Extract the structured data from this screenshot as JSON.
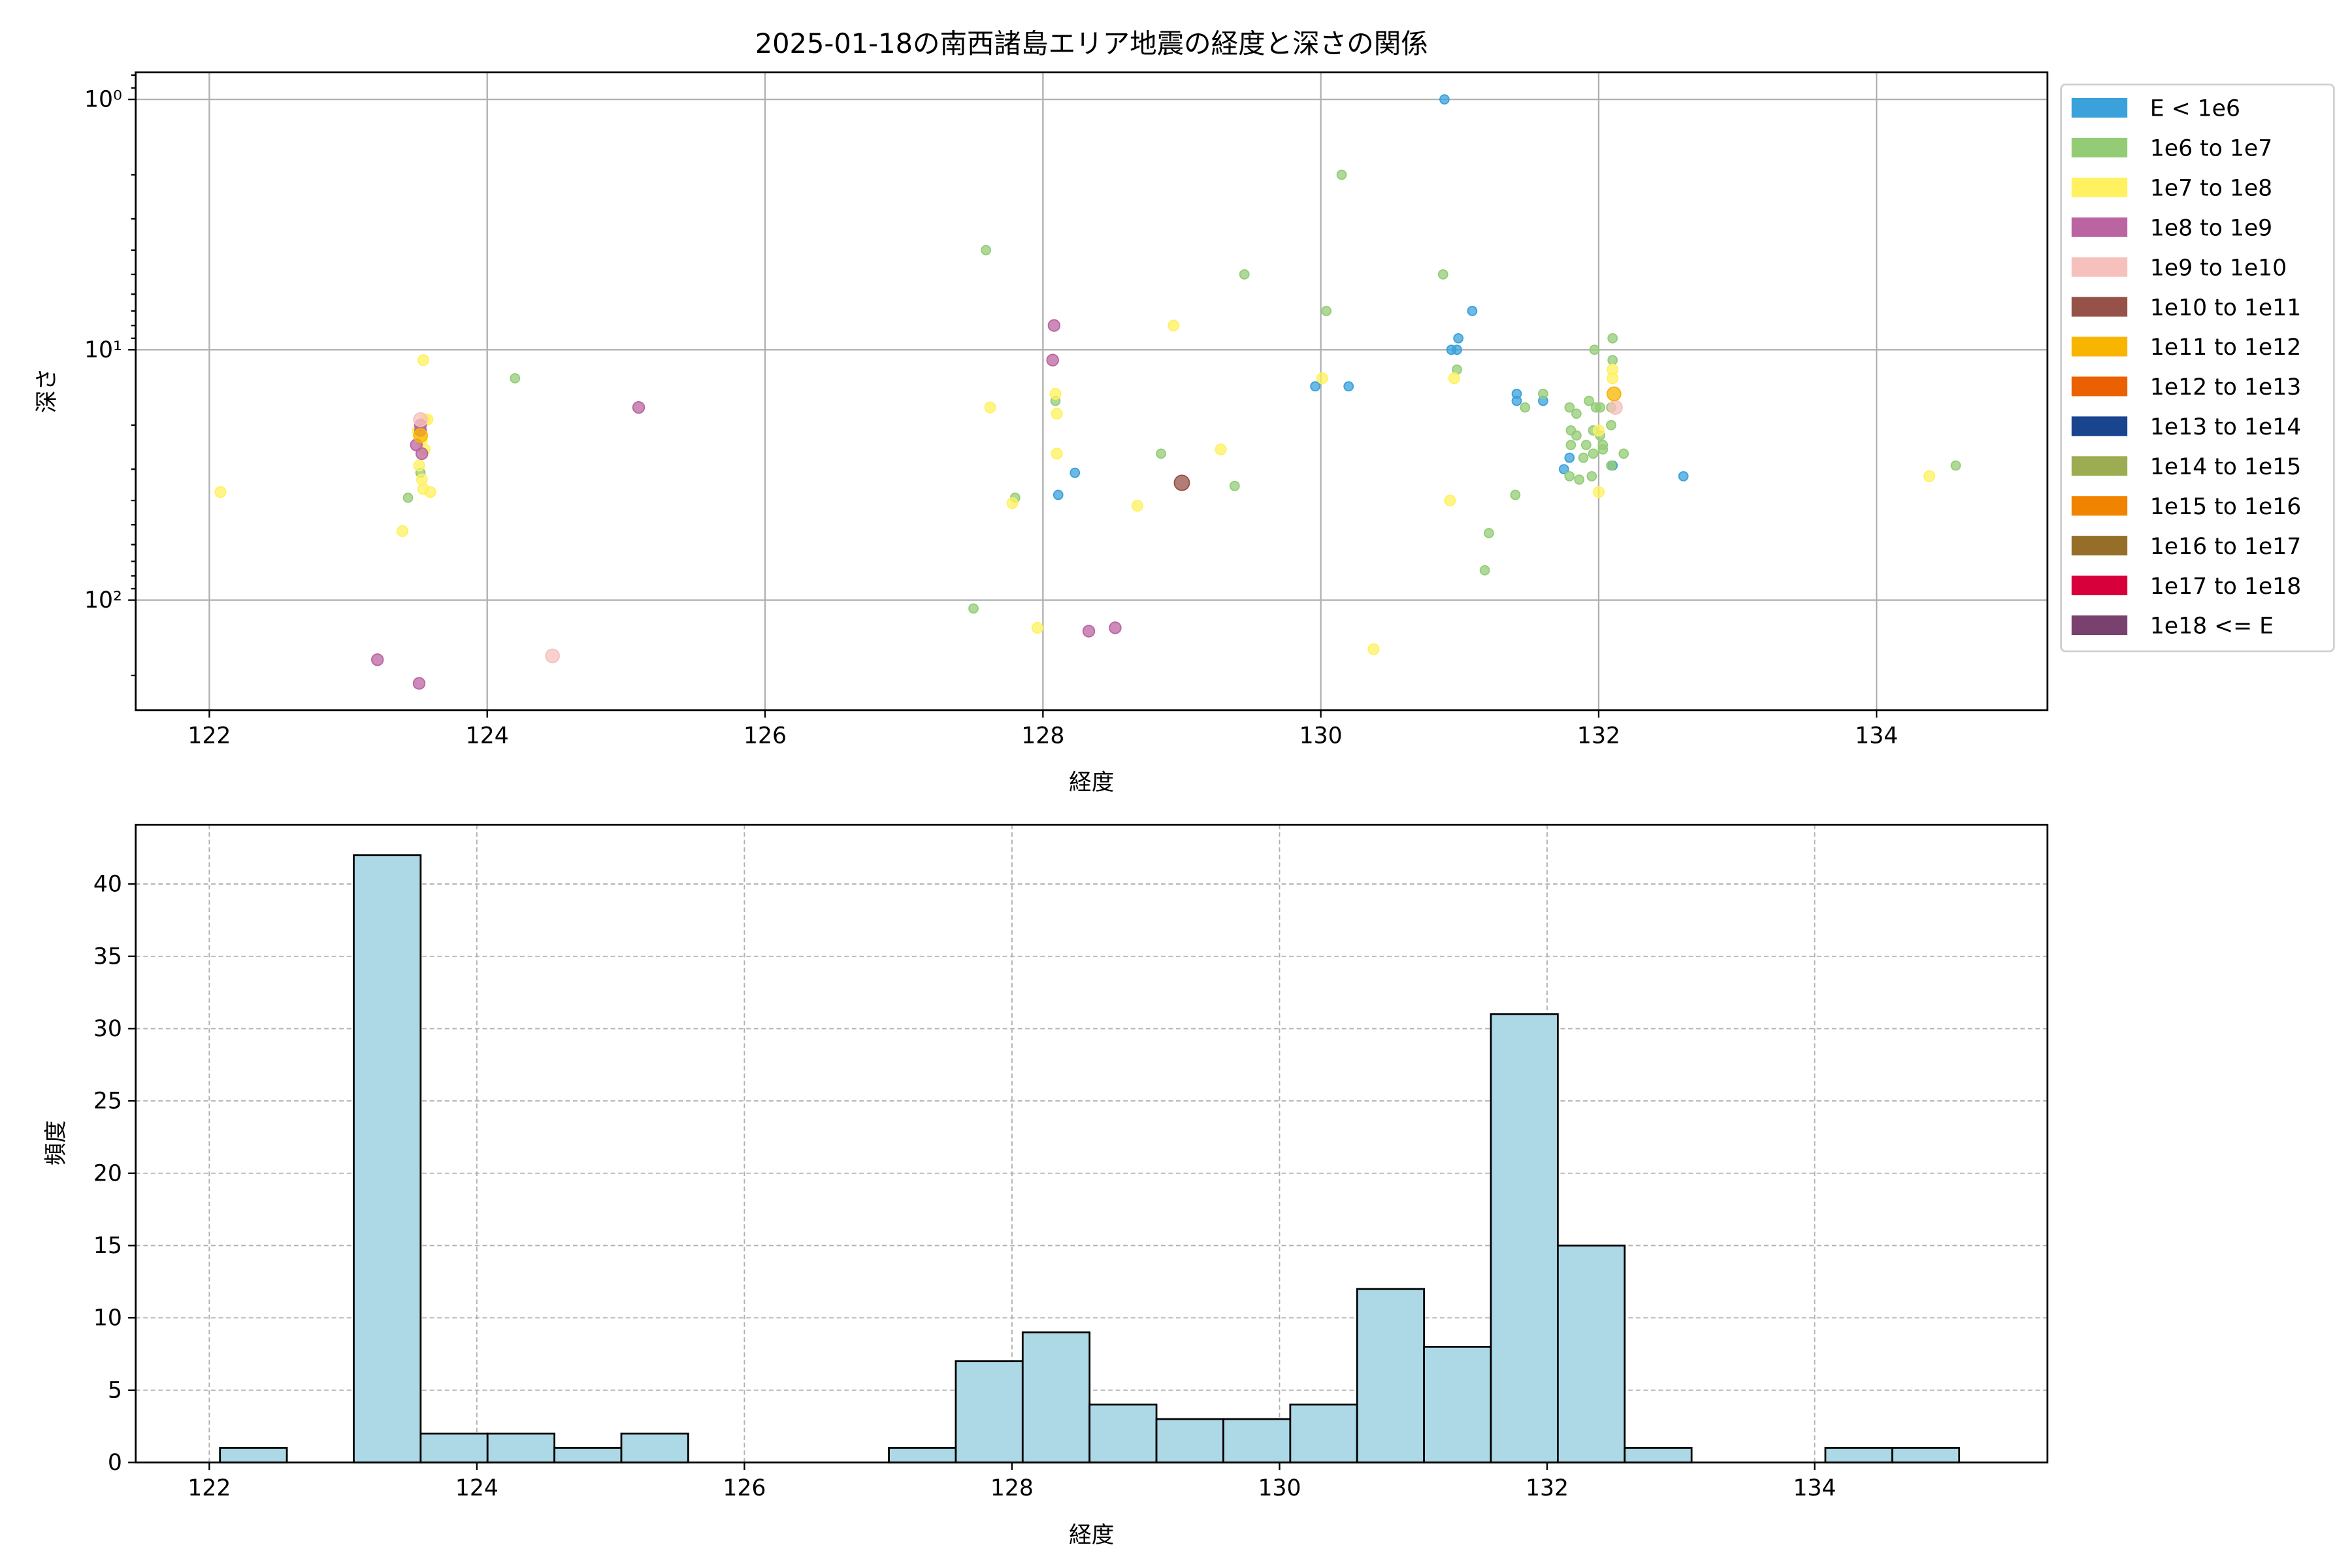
{
  "chart_data": [
    {
      "type": "scatter",
      "title": "2025-01-18の南西諸島エリア地震の経度と深さの関係",
      "xlabel": "経度",
      "ylabel": "深さ",
      "xlim": [
        121.47,
        135.23
      ],
      "ylim": [
        275,
        0.78
      ],
      "y_scale": "log",
      "y_inverted": true,
      "x_ticks": [
        122,
        124,
        126,
        128,
        130,
        132,
        134
      ],
      "x_tick_labels": [
        "122",
        "124",
        "126",
        "128",
        "130",
        "132",
        "134"
      ],
      "y_ticks": [
        1,
        10,
        100
      ],
      "y_tick_labels": [
        "10⁰",
        "10¹",
        "10²"
      ],
      "grid": true,
      "legend_placement": "outside-right",
      "series": [
        {
          "name": "E < 1e6",
          "color": "#3aa1db",
          "points": [
            [
              130.89,
              1
            ],
            [
              131.09,
              7
            ],
            [
              130.99,
              9
            ],
            [
              130.94,
              10
            ],
            [
              130.98,
              10
            ],
            [
              129.96,
              14
            ],
            [
              130.2,
              14
            ],
            [
              131.41,
              15
            ],
            [
              131.41,
              16
            ],
            [
              131.6,
              16
            ],
            [
              131.79,
              27
            ],
            [
              131.75,
              30
            ],
            [
              132.1,
              29
            ],
            [
              128.23,
              31
            ],
            [
              128.11,
              38
            ],
            [
              132.61,
              32
            ]
          ]
        },
        {
          "name": "1e6 to 1e7",
          "color": "#94cc76",
          "points": [
            [
              127.59,
              4
            ],
            [
              129.45,
              5
            ],
            [
              130.15,
              2
            ],
            [
              130.88,
              5
            ],
            [
              130.04,
              7
            ],
            [
              132.1,
              9
            ],
            [
              131.97,
              10
            ],
            [
              132.1,
              11
            ],
            [
              130.98,
              12
            ],
            [
              131.6,
              15
            ],
            [
              131.47,
              17
            ],
            [
              131.79,
              17
            ],
            [
              131.84,
              18
            ],
            [
              131.93,
              16
            ],
            [
              131.98,
              17
            ],
            [
              132.01,
              17
            ],
            [
              132.09,
              17
            ],
            [
              132.09,
              20
            ],
            [
              131.8,
              21
            ],
            [
              131.84,
              22
            ],
            [
              131.96,
              21
            ],
            [
              132.01,
              22
            ],
            [
              131.8,
              24
            ],
            [
              131.91,
              24
            ],
            [
              132.03,
              24
            ],
            [
              132.03,
              25
            ],
            [
              131.96,
              26
            ],
            [
              131.89,
              27
            ],
            [
              132.18,
              26
            ],
            [
              131.79,
              32
            ],
            [
              131.86,
              33
            ],
            [
              131.95,
              32
            ],
            [
              132.09,
              29
            ],
            [
              128.85,
              26
            ],
            [
              129.38,
              35
            ],
            [
              127.8,
              39
            ],
            [
              131.4,
              38
            ],
            [
              131.21,
              54
            ],
            [
              131.18,
              76
            ],
            [
              127.5,
              108
            ],
            [
              134.57,
              29
            ],
            [
              128.09,
              16
            ],
            [
              124.2,
              13
            ],
            [
              123.43,
              39
            ],
            [
              123.52,
              31
            ]
          ]
        },
        {
          "name": "1e7 to 1e8",
          "color": "#fff15f",
          "points": [
            [
              128.94,
              8
            ],
            [
              130.01,
              13
            ],
            [
              130.96,
              13
            ],
            [
              132.1,
              12
            ],
            [
              132.1,
              13
            ],
            [
              127.62,
              17
            ],
            [
              128.09,
              15
            ],
            [
              128.1,
              18
            ],
            [
              128.1,
              26
            ],
            [
              129.28,
              25
            ],
            [
              127.78,
              41
            ],
            [
              128.68,
              42
            ],
            [
              130.93,
              40
            ],
            [
              132.0,
              37
            ],
            [
              134.38,
              32
            ],
            [
              127.96,
              129
            ],
            [
              130.38,
              157
            ],
            [
              132.0,
              21
            ],
            [
              122.08,
              37
            ],
            [
              123.54,
              11
            ],
            [
              123.39,
              53
            ],
            [
              123.59,
              37
            ],
            [
              123.54,
              36
            ],
            [
              123.55,
              19
            ],
            [
              123.57,
              19
            ],
            [
              123.53,
              23
            ],
            [
              123.51,
              29
            ],
            [
              123.53,
              33
            ],
            [
              123.55,
              25
            ],
            [
              123.5,
              21
            ]
          ]
        },
        {
          "name": "1e8 to 1e9",
          "color": "#bb64a2",
          "points": [
            [
              128.08,
              8
            ],
            [
              128.07,
              11
            ],
            [
              128.33,
              133
            ],
            [
              128.52,
              129
            ],
            [
              125.09,
              17
            ],
            [
              123.21,
              173
            ],
            [
              123.51,
              215
            ],
            [
              123.52,
              20
            ],
            [
              123.49,
              24
            ],
            [
              123.53,
              26
            ],
            [
              123.52,
              21
            ]
          ]
        },
        {
          "name": "1e9 to 1e10",
          "color": "#f6c1bd",
          "points": [
            [
              132.12,
              17
            ],
            [
              124.47,
              167
            ],
            [
              123.52,
              19
            ]
          ]
        },
        {
          "name": "1e10 to 1e11",
          "color": "#965249",
          "points": [
            [
              129.0,
              34
            ]
          ]
        },
        {
          "name": "1e11 to 1e12",
          "color": "#f8b500",
          "points": [
            [
              132.11,
              15
            ],
            [
              123.52,
              22
            ]
          ]
        },
        {
          "name": "1e12 to 1e13",
          "color": "#eb6101",
          "points": []
        },
        {
          "name": "1e13 to 1e14",
          "color": "#19448e",
          "points": []
        },
        {
          "name": "1e14 to 1e15",
          "color": "#9bac51",
          "points": []
        },
        {
          "name": "1e15 to 1e16",
          "color": "#f08300",
          "points": []
        },
        {
          "name": "1e16 to 1e17",
          "color": "#956f29",
          "points": []
        },
        {
          "name": "1e17 to 1e18",
          "color": "#d7003a",
          "points": []
        },
        {
          "name": "1e18 <= E",
          "color": "#79426e",
          "points": []
        }
      ]
    },
    {
      "type": "bar",
      "subtype": "histogram",
      "xlabel": "経度",
      "ylabel": "頻度",
      "xlim": [
        121.45,
        135.74
      ],
      "ylim": [
        0,
        44.1
      ],
      "bin_start": 122.08,
      "bin_width": 0.5,
      "values": [
        1,
        0,
        42,
        2,
        2,
        1,
        2,
        0,
        0,
        0,
        1,
        7,
        9,
        4,
        3,
        3,
        4,
        12,
        8,
        31,
        15,
        1,
        0,
        0,
        1,
        1
      ],
      "bar_color": "#add8e6",
      "edge_color": "#000000",
      "x_ticks": [
        122,
        124,
        126,
        128,
        130,
        132,
        134
      ],
      "x_tick_labels": [
        "122",
        "124",
        "126",
        "128",
        "130",
        "132",
        "134"
      ],
      "y_ticks": [
        0,
        5,
        10,
        15,
        20,
        25,
        30,
        35,
        40
      ],
      "y_tick_labels": [
        "0",
        "5",
        "10",
        "15",
        "20",
        "25",
        "30",
        "35",
        "40"
      ],
      "grid": "dashed"
    }
  ]
}
